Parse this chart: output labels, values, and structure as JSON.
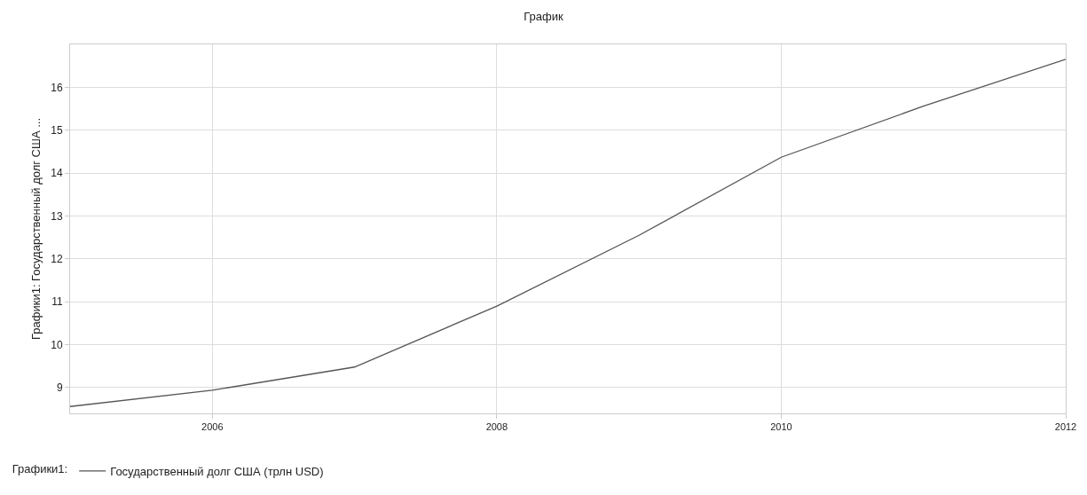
{
  "chart_data": {
    "type": "line",
    "title": "График",
    "ylabel": "Графики1: Государственный долг США ...",
    "legend_title": "Графики1:",
    "x": [
      2005,
      2006,
      2007,
      2008,
      2009,
      2010,
      2011,
      2012
    ],
    "series": [
      {
        "name": "Государственный долг США (трлн USD)",
        "color": "#555555",
        "values": [
          8.56,
          8.94,
          9.48,
          10.9,
          12.55,
          14.37,
          15.56,
          16.65
        ]
      }
    ],
    "xlim": [
      2005,
      2012
    ],
    "xticks": [
      2006,
      2008,
      2010,
      2012
    ],
    "ylim": [
      8.4,
      17
    ],
    "yticks": [
      9,
      10,
      11,
      12,
      13,
      14,
      15,
      16
    ],
    "grid": true,
    "legend": "bottom left",
    "marker": "none",
    "line_style": "solid"
  }
}
